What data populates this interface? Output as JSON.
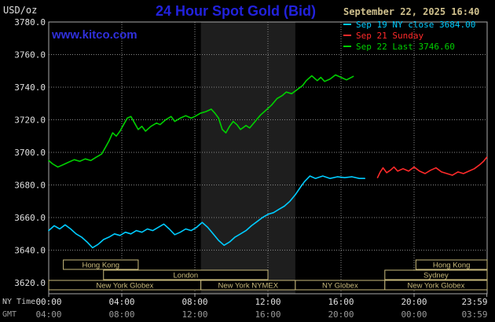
{
  "header": {
    "units": "USD/oz",
    "title": "24 Hour Spot Gold (Bid)",
    "datetime": "September 22, 2025 16:40"
  },
  "watermark": "www.kitco.com",
  "legend": [
    {
      "label": "Sep 19 NY close 3684.00"
    },
    {
      "label": "Sep 21 Sunday"
    },
    {
      "label": "Sep 22 Last 3746.60"
    }
  ],
  "colors": {
    "background": "#000000",
    "plot_border": "#aaaaaa",
    "grid": "#888888",
    "band": "#1e1e1e",
    "title_blue": "#2222dd",
    "watermark_blue": "#3030dd",
    "datetime_tan": "#cfc08d",
    "session_tan": "#c9ba7c",
    "axis_text": "#e0e0e0",
    "gmt_text": "#9a9a9a",
    "cyan": "#00ccff",
    "red": "#ff2a2a",
    "green": "#00d000"
  },
  "axes": {
    "x": {
      "ny_label": "NY Time",
      "gmt_label": "GMT",
      "ticks": [
        {
          "hour": 0,
          "ny": "00:00",
          "gmt": "04:00"
        },
        {
          "hour": 4,
          "ny": "04:00",
          "gmt": "08:00"
        },
        {
          "hour": 8,
          "ny": "08:00",
          "gmt": "12:00"
        },
        {
          "hour": 12,
          "ny": "12:00",
          "gmt": "16:00"
        },
        {
          "hour": 16,
          "ny": "16:00",
          "gmt": "20:00"
        },
        {
          "hour": 20,
          "ny": "20:00",
          "gmt": "00:00"
        },
        {
          "hour": 23.983,
          "ny": "23:59",
          "gmt": "03:59"
        }
      ]
    }
  },
  "sessions": {
    "rows": [
      {
        "boxes": [
          {
            "label": "Hong Kong",
            "start": 0.8,
            "end": 4.9
          },
          {
            "label": "Hong Kong",
            "start": 20.1,
            "end": 24
          }
        ]
      },
      {
        "boxes": [
          {
            "label": "London",
            "start": 3.0,
            "end": 12.0
          },
          {
            "label": "Sydney",
            "start": 18.4,
            "end": 24
          }
        ]
      },
      {
        "boxes": [
          {
            "label": "New York Globex",
            "start": 0,
            "end": 8.33
          },
          {
            "label": "New York NYMEX",
            "start": 8.33,
            "end": 13.5
          },
          {
            "label": "NY Globex",
            "start": 13.5,
            "end": 18.4
          },
          {
            "label": "New York Globex",
            "start": 18.4,
            "end": 24
          }
        ]
      }
    ]
  },
  "chart_data": {
    "type": "line",
    "title": "24 Hour Spot Gold (Bid)",
    "xlabel": "NY Time (hours 00:00-23:59)",
    "ylabel": "USD/oz",
    "ylim": [
      3620,
      3780
    ],
    "xlim": [
      0,
      24
    ],
    "grid": true,
    "legend_position": "top-right",
    "y_ticks": [
      3780,
      3760,
      3740,
      3720,
      3700,
      3680,
      3660,
      3640,
      3620
    ],
    "nymex_band": [
      8.33,
      13.5
    ],
    "series": [
      {
        "id": "sep19",
        "name": "Sep 19 NY close 3684.00",
        "color": "#00ccff",
        "points": [
          [
            0,
            3652
          ],
          [
            0.3,
            3655
          ],
          [
            0.6,
            3653
          ],
          [
            0.9,
            3655.5
          ],
          [
            1.2,
            3653
          ],
          [
            1.5,
            3650
          ],
          [
            1.8,
            3648
          ],
          [
            2.1,
            3645
          ],
          [
            2.4,
            3641.5
          ],
          [
            2.7,
            3643.5
          ],
          [
            3,
            3646.5
          ],
          [
            3.3,
            3648
          ],
          [
            3.6,
            3650
          ],
          [
            3.9,
            3649
          ],
          [
            4.2,
            3651
          ],
          [
            4.5,
            3650
          ],
          [
            4.8,
            3652
          ],
          [
            5.1,
            3651
          ],
          [
            5.4,
            3653
          ],
          [
            5.7,
            3652
          ],
          [
            6,
            3654
          ],
          [
            6.3,
            3656
          ],
          [
            6.6,
            3653
          ],
          [
            6.9,
            3649.5
          ],
          [
            7.2,
            3651
          ],
          [
            7.5,
            3653
          ],
          [
            7.8,
            3652
          ],
          [
            8.1,
            3654
          ],
          [
            8.4,
            3657
          ],
          [
            8.7,
            3654
          ],
          [
            9,
            3650
          ],
          [
            9.3,
            3646
          ],
          [
            9.6,
            3643
          ],
          [
            9.9,
            3645
          ],
          [
            10.2,
            3648
          ],
          [
            10.5,
            3650
          ],
          [
            10.8,
            3652
          ],
          [
            11.1,
            3655
          ],
          [
            11.4,
            3657.5
          ],
          [
            11.7,
            3660
          ],
          [
            12,
            3662
          ],
          [
            12.3,
            3663
          ],
          [
            12.6,
            3665
          ],
          [
            12.9,
            3667
          ],
          [
            13.2,
            3670
          ],
          [
            13.5,
            3674
          ],
          [
            13.8,
            3679
          ],
          [
            14,
            3682
          ],
          [
            14.3,
            3685.5
          ],
          [
            14.6,
            3684
          ],
          [
            15,
            3685.5
          ],
          [
            15.4,
            3684
          ],
          [
            15.8,
            3685
          ],
          [
            16.2,
            3684.5
          ],
          [
            16.6,
            3685
          ],
          [
            17,
            3684
          ],
          [
            17.3,
            3684
          ]
        ]
      },
      {
        "id": "sep21",
        "name": "Sep 21 Sunday",
        "color": "#ff2a2a",
        "points": [
          [
            18,
            3684.5
          ],
          [
            18.15,
            3688
          ],
          [
            18.3,
            3690.5
          ],
          [
            18.5,
            3687.5
          ],
          [
            18.7,
            3689
          ],
          [
            18.9,
            3691
          ],
          [
            19.1,
            3688.5
          ],
          [
            19.4,
            3690
          ],
          [
            19.7,
            3688.5
          ],
          [
            20,
            3691
          ],
          [
            20.3,
            3688.5
          ],
          [
            20.6,
            3687
          ],
          [
            20.9,
            3689
          ],
          [
            21.2,
            3690.5
          ],
          [
            21.5,
            3688
          ],
          [
            21.8,
            3687
          ],
          [
            22.1,
            3686
          ],
          [
            22.4,
            3688
          ],
          [
            22.7,
            3687
          ],
          [
            23,
            3688.5
          ],
          [
            23.3,
            3690
          ],
          [
            23.6,
            3692.5
          ],
          [
            23.8,
            3694.5
          ],
          [
            23.98,
            3697
          ]
        ]
      },
      {
        "id": "sep22",
        "name": "Sep 22 Last 3746.60",
        "color": "#00d000",
        "points": [
          [
            0,
            3695
          ],
          [
            0.2,
            3693
          ],
          [
            0.5,
            3691
          ],
          [
            0.8,
            3692.5
          ],
          [
            1.1,
            3694
          ],
          [
            1.4,
            3695.5
          ],
          [
            1.7,
            3694.5
          ],
          [
            2,
            3696
          ],
          [
            2.3,
            3695
          ],
          [
            2.6,
            3697
          ],
          [
            2.9,
            3699
          ],
          [
            3.1,
            3703
          ],
          [
            3.3,
            3707
          ],
          [
            3.5,
            3712
          ],
          [
            3.7,
            3710
          ],
          [
            3.9,
            3713
          ],
          [
            4.1,
            3717
          ],
          [
            4.3,
            3721
          ],
          [
            4.5,
            3722
          ],
          [
            4.7,
            3718
          ],
          [
            4.9,
            3714
          ],
          [
            5.1,
            3716
          ],
          [
            5.3,
            3713
          ],
          [
            5.6,
            3716
          ],
          [
            5.9,
            3718
          ],
          [
            6.1,
            3717
          ],
          [
            6.4,
            3720
          ],
          [
            6.7,
            3722
          ],
          [
            6.9,
            3719
          ],
          [
            7.2,
            3721
          ],
          [
            7.5,
            3722.5
          ],
          [
            7.8,
            3721
          ],
          [
            8,
            3722
          ],
          [
            8.3,
            3724
          ],
          [
            8.6,
            3725
          ],
          [
            8.9,
            3726.5
          ],
          [
            9.1,
            3724
          ],
          [
            9.3,
            3721
          ],
          [
            9.5,
            3714
          ],
          [
            9.7,
            3712
          ],
          [
            9.9,
            3716
          ],
          [
            10.1,
            3719
          ],
          [
            10.3,
            3717
          ],
          [
            10.5,
            3714
          ],
          [
            10.8,
            3716.5
          ],
          [
            11,
            3715
          ],
          [
            11.3,
            3719
          ],
          [
            11.6,
            3723
          ],
          [
            11.9,
            3726
          ],
          [
            12.2,
            3729
          ],
          [
            12.5,
            3733
          ],
          [
            12.8,
            3735
          ],
          [
            13,
            3737
          ],
          [
            13.3,
            3736
          ],
          [
            13.6,
            3738.5
          ],
          [
            13.9,
            3741
          ],
          [
            14.1,
            3744
          ],
          [
            14.4,
            3747
          ],
          [
            14.7,
            3744
          ],
          [
            14.9,
            3746
          ],
          [
            15.1,
            3743.5
          ],
          [
            15.4,
            3745
          ],
          [
            15.7,
            3747.5
          ],
          [
            16,
            3746
          ],
          [
            16.3,
            3744.5
          ],
          [
            16.67,
            3746.6
          ]
        ]
      }
    ]
  }
}
